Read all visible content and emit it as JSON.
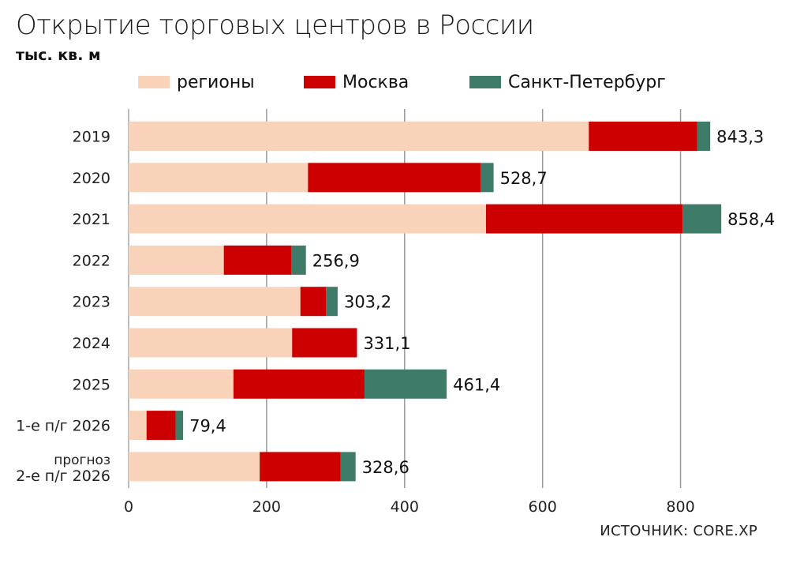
{
  "title": "Открытие торговых центров в России",
  "subtitle": "тыс. кв. м",
  "source": "ИСТОЧНИК: CORE.XP",
  "colors": {
    "regions": "#F8D3B9",
    "moscow": "#CC0000",
    "spb": "#3E7B68",
    "grid": "#999999"
  },
  "chart_data": {
    "type": "bar",
    "orientation": "horizontal",
    "stacked": true,
    "categories": [
      "2019",
      "2020",
      "2021",
      "2022",
      "2023",
      "2024",
      "2025",
      "1-е п/г 2026",
      "прогноз\n2-е п/г 2026"
    ],
    "series": [
      {
        "name": "регионы",
        "values": [
          667,
          260,
          518,
          138,
          249,
          237,
          152,
          26,
          190
        ]
      },
      {
        "name": "Москва",
        "values": [
          157,
          250,
          285,
          98,
          37,
          94,
          190,
          42,
          117
        ]
      },
      {
        "name": "Санкт-Петербург",
        "values": [
          19,
          19,
          56,
          21,
          17,
          0,
          119,
          11,
          22
        ]
      }
    ],
    "totals": [
      "843,3",
      "528,7",
      "858,4",
      "256,9",
      "303,2",
      "331,1",
      "461,4",
      "79,4",
      "328,6"
    ],
    "x_ticks": [
      "0",
      "200",
      "400",
      "600",
      "800"
    ],
    "xlim": [
      0,
      900
    ],
    "grid": true,
    "legend_position": "top"
  }
}
